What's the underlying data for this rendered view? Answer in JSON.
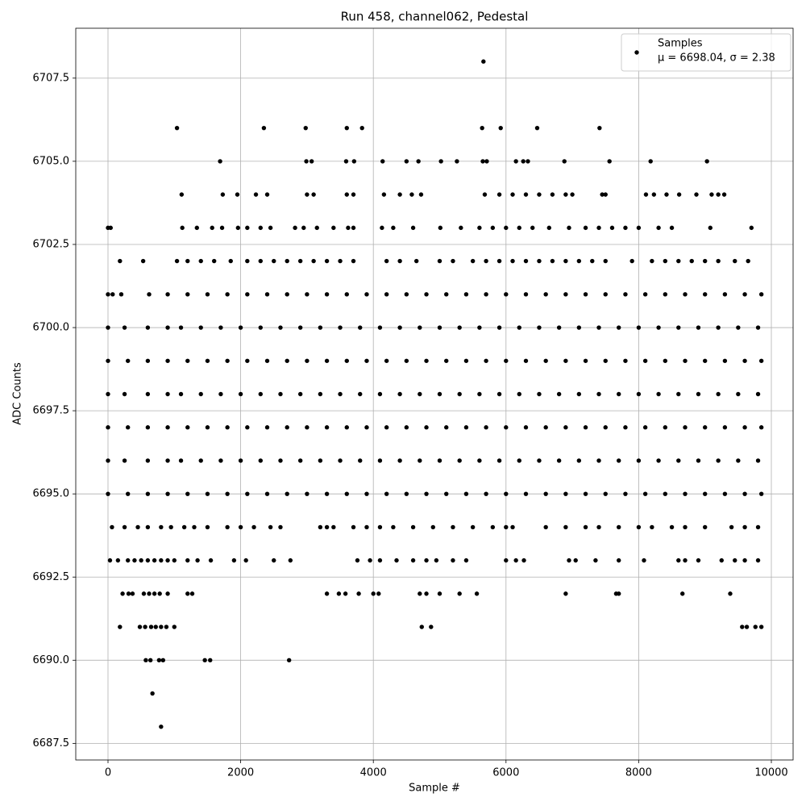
{
  "chart_data": {
    "type": "scatter",
    "title": "Run 458, channel062, Pedestal",
    "x_label": "Sample #",
    "y_label": "ADC Counts",
    "xlim": [
      -486,
      10328
    ],
    "ylim": [
      6687,
      6709
    ],
    "xticks": [
      0,
      2000,
      4000,
      6000,
      8000,
      10000
    ],
    "yticks": [
      6687.5,
      {
        "value": 6690,
        "label": "6690.0"
      },
      6692.5,
      {
        "value": 6695,
        "label": "6695.0"
      },
      6697.5,
      {
        "value": 6700,
        "label": "6700.0"
      },
      6702.5,
      {
        "value": 6705,
        "label": "6705.0"
      },
      6707.5
    ],
    "grid": true,
    "legend": "upper right",
    "series": [
      {
        "name": "Samples",
        "stats": "μ = 6698.04, σ = 2.38",
        "color": "#000000",
        "x": [
          5660,
          1040,
          2350,
          2980,
          3600,
          3830,
          5640,
          5920,
          6470,
          7410,
          1690,
          2990,
          3070,
          3590,
          3710,
          4140,
          4500,
          4680,
          5020,
          5260,
          5650,
          5710,
          6150,
          6260,
          6330,
          6880,
          7560,
          8180,
          9030,
          1110,
          1730,
          1950,
          2230,
          2400,
          3000,
          3100,
          3600,
          3700,
          4160,
          4400,
          4580,
          4720,
          5680,
          5900,
          6100,
          6300,
          6500,
          6700,
          6900,
          7000,
          7450,
          7500,
          8110,
          8230,
          8420,
          8610,
          8870,
          9100,
          9200,
          9290,
          0,
          40,
          1120,
          1340,
          1570,
          1720,
          1960,
          2100,
          2300,
          2450,
          2820,
          2950,
          3150,
          3400,
          3620,
          3700,
          4130,
          4300,
          4600,
          5010,
          5320,
          5600,
          5800,
          6000,
          6200,
          6400,
          6650,
          6950,
          7200,
          7400,
          7600,
          7800,
          8000,
          8300,
          8500,
          9080,
          9700,
          180,
          530,
          1040,
          1200,
          1400,
          1600,
          1850,
          2100,
          2300,
          2500,
          2700,
          2900,
          3100,
          3300,
          3500,
          3700,
          4200,
          4400,
          4650,
          5000,
          5200,
          5500,
          5700,
          5900,
          6100,
          6300,
          6500,
          6700,
          6900,
          7100,
          7300,
          7500,
          7900,
          8200,
          8400,
          8600,
          8800,
          9000,
          9200,
          9450,
          9650,
          0,
          70,
          200,
          620,
          900,
          1200,
          1500,
          1800,
          2100,
          2400,
          2700,
          3000,
          3300,
          3600,
          3900,
          4200,
          4500,
          4800,
          5100,
          5400,
          5700,
          6000,
          6300,
          6600,
          6900,
          7200,
          7500,
          7800,
          8100,
          8400,
          8700,
          9000,
          9300,
          9600,
          9850,
          0,
          250,
          600,
          900,
          1100,
          1400,
          1700,
          2000,
          2300,
          2600,
          2900,
          3200,
          3500,
          3800,
          4100,
          4400,
          4700,
          5000,
          5300,
          5600,
          5900,
          6200,
          6500,
          6800,
          7100,
          7400,
          7700,
          8000,
          8300,
          8600,
          8900,
          9200,
          9500,
          9800,
          0,
          300,
          600,
          900,
          1200,
          1500,
          1800,
          2100,
          2400,
          2700,
          3000,
          3300,
          3600,
          3900,
          4200,
          4500,
          4800,
          5100,
          5400,
          5700,
          6000,
          6300,
          6600,
          6900,
          7200,
          7500,
          7800,
          8100,
          8400,
          8700,
          9000,
          9300,
          9600,
          9850,
          0,
          250,
          600,
          900,
          1100,
          1400,
          1700,
          2000,
          2300,
          2600,
          2900,
          3200,
          3500,
          3800,
          4100,
          4400,
          4700,
          5000,
          5300,
          5600,
          5900,
          6200,
          6500,
          6800,
          7100,
          7400,
          7700,
          8000,
          8300,
          8600,
          8900,
          9200,
          9500,
          9800,
          0,
          300,
          600,
          900,
          1200,
          1500,
          1800,
          2100,
          2400,
          2700,
          3000,
          3300,
          3600,
          3900,
          4200,
          4500,
          4800,
          5100,
          5400,
          5700,
          6000,
          6300,
          6600,
          6900,
          7200,
          7500,
          7800,
          8100,
          8400,
          8700,
          9000,
          9300,
          9600,
          9850,
          0,
          250,
          600,
          900,
          1100,
          1400,
          1700,
          2000,
          2300,
          2600,
          2900,
          3200,
          3500,
          3800,
          4100,
          4400,
          4700,
          5000,
          5300,
          5600,
          5900,
          6200,
          6500,
          6800,
          7100,
          7400,
          7700,
          8000,
          8300,
          8600,
          8900,
          9200,
          9500,
          9800,
          0,
          300,
          600,
          900,
          1200,
          1500,
          1800,
          2100,
          2400,
          2700,
          3000,
          3300,
          3600,
          3900,
          4200,
          4500,
          4800,
          5100,
          5400,
          5700,
          6000,
          6300,
          6600,
          6900,
          7200,
          7500,
          7800,
          8100,
          8400,
          8700,
          9000,
          9300,
          9600,
          9850,
          60,
          250,
          450,
          600,
          800,
          950,
          1150,
          1300,
          1500,
          1800,
          2000,
          2200,
          2450,
          2600,
          3200,
          3300,
          3400,
          3700,
          3900,
          4100,
          4300,
          4600,
          4900,
          5200,
          5500,
          5800,
          6000,
          6100,
          6600,
          6900,
          7200,
          7400,
          7700,
          8000,
          8200,
          8500,
          8700,
          9000,
          9400,
          9600,
          9800,
          30,
          150,
          300,
          400,
          500,
          600,
          700,
          800,
          900,
          1000,
          1200,
          1350,
          1550,
          1900,
          2080,
          2500,
          2750,
          3760,
          3950,
          4100,
          4350,
          4600,
          4800,
          4950,
          5200,
          5400,
          6000,
          6150,
          6270,
          6950,
          7050,
          7350,
          7700,
          8080,
          8600,
          8700,
          8900,
          9250,
          9450,
          9600,
          9800,
          220,
          310,
          370,
          540,
          620,
          700,
          780,
          900,
          1200,
          1270,
          3300,
          3480,
          3580,
          3780,
          4000,
          4080,
          4700,
          4800,
          5000,
          5300,
          5560,
          6900,
          7660,
          7700,
          8660,
          9380,
          180,
          480,
          560,
          650,
          720,
          800,
          880,
          1000,
          4730,
          4870,
          9560,
          9630,
          9760,
          9850,
          570,
          640,
          770,
          830,
          1460,
          1540,
          2730,
          670,
          800
        ],
        "values": [
          6708,
          6706,
          6706,
          6706,
          6706,
          6706,
          6706,
          6706,
          6706,
          6706,
          6705,
          6705,
          6705,
          6705,
          6705,
          6705,
          6705,
          6705,
          6705,
          6705,
          6705,
          6705,
          6705,
          6705,
          6705,
          6705,
          6705,
          6705,
          6705,
          6704,
          6704,
          6704,
          6704,
          6704,
          6704,
          6704,
          6704,
          6704,
          6704,
          6704,
          6704,
          6704,
          6704,
          6704,
          6704,
          6704,
          6704,
          6704,
          6704,
          6704,
          6704,
          6704,
          6704,
          6704,
          6704,
          6704,
          6704,
          6704,
          6704,
          6704,
          6703,
          6703,
          6703,
          6703,
          6703,
          6703,
          6703,
          6703,
          6703,
          6703,
          6703,
          6703,
          6703,
          6703,
          6703,
          6703,
          6703,
          6703,
          6703,
          6703,
          6703,
          6703,
          6703,
          6703,
          6703,
          6703,
          6703,
          6703,
          6703,
          6703,
          6703,
          6703,
          6703,
          6703,
          6703,
          6703,
          6703,
          6702,
          6702,
          6702,
          6702,
          6702,
          6702,
          6702,
          6702,
          6702,
          6702,
          6702,
          6702,
          6702,
          6702,
          6702,
          6702,
          6702,
          6702,
          6702,
          6702,
          6702,
          6702,
          6702,
          6702,
          6702,
          6702,
          6702,
          6702,
          6702,
          6702,
          6702,
          6702,
          6702,
          6702,
          6702,
          6702,
          6702,
          6702,
          6702,
          6702,
          6702,
          6701,
          6701,
          6701,
          6701,
          6701,
          6701,
          6701,
          6701,
          6701,
          6701,
          6701,
          6701,
          6701,
          6701,
          6701,
          6701,
          6701,
          6701,
          6701,
          6701,
          6701,
          6701,
          6701,
          6701,
          6701,
          6701,
          6701,
          6701,
          6701,
          6701,
          6701,
          6701,
          6701,
          6701,
          6701,
          6700,
          6700,
          6700,
          6700,
          6700,
          6700,
          6700,
          6700,
          6700,
          6700,
          6700,
          6700,
          6700,
          6700,
          6700,
          6700,
          6700,
          6700,
          6700,
          6700,
          6700,
          6700,
          6700,
          6700,
          6700,
          6700,
          6700,
          6700,
          6700,
          6700,
          6700,
          6700,
          6700,
          6700,
          6699,
          6699,
          6699,
          6699,
          6699,
          6699,
          6699,
          6699,
          6699,
          6699,
          6699,
          6699,
          6699,
          6699,
          6699,
          6699,
          6699,
          6699,
          6699,
          6699,
          6699,
          6699,
          6699,
          6699,
          6699,
          6699,
          6699,
          6699,
          6699,
          6699,
          6699,
          6699,
          6699,
          6699,
          6698,
          6698,
          6698,
          6698,
          6698,
          6698,
          6698,
          6698,
          6698,
          6698,
          6698,
          6698,
          6698,
          6698,
          6698,
          6698,
          6698,
          6698,
          6698,
          6698,
          6698,
          6698,
          6698,
          6698,
          6698,
          6698,
          6698,
          6698,
          6698,
          6698,
          6698,
          6698,
          6698,
          6698,
          6697,
          6697,
          6697,
          6697,
          6697,
          6697,
          6697,
          6697,
          6697,
          6697,
          6697,
          6697,
          6697,
          6697,
          6697,
          6697,
          6697,
          6697,
          6697,
          6697,
          6697,
          6697,
          6697,
          6697,
          6697,
          6697,
          6697,
          6697,
          6697,
          6697,
          6697,
          6697,
          6697,
          6697,
          6696,
          6696,
          6696,
          6696,
          6696,
          6696,
          6696,
          6696,
          6696,
          6696,
          6696,
          6696,
          6696,
          6696,
          6696,
          6696,
          6696,
          6696,
          6696,
          6696,
          6696,
          6696,
          6696,
          6696,
          6696,
          6696,
          6696,
          6696,
          6696,
          6696,
          6696,
          6696,
          6696,
          6696,
          6695,
          6695,
          6695,
          6695,
          6695,
          6695,
          6695,
          6695,
          6695,
          6695,
          6695,
          6695,
          6695,
          6695,
          6695,
          6695,
          6695,
          6695,
          6695,
          6695,
          6695,
          6695,
          6695,
          6695,
          6695,
          6695,
          6695,
          6695,
          6695,
          6695,
          6695,
          6695,
          6695,
          6695,
          6694,
          6694,
          6694,
          6694,
          6694,
          6694,
          6694,
          6694,
          6694,
          6694,
          6694,
          6694,
          6694,
          6694,
          6694,
          6694,
          6694,
          6694,
          6694,
          6694,
          6694,
          6694,
          6694,
          6694,
          6694,
          6694,
          6694,
          6694,
          6694,
          6694,
          6694,
          6694,
          6694,
          6694,
          6694,
          6694,
          6694,
          6694,
          6694,
          6694,
          6694,
          6693,
          6693,
          6693,
          6693,
          6693,
          6693,
          6693,
          6693,
          6693,
          6693,
          6693,
          6693,
          6693,
          6693,
          6693,
          6693,
          6693,
          6693,
          6693,
          6693,
          6693,
          6693,
          6693,
          6693,
          6693,
          6693,
          6693,
          6693,
          6693,
          6693,
          6693,
          6693,
          6693,
          6693,
          6693,
          6693,
          6693,
          6693,
          6693,
          6693,
          6693,
          6692,
          6692,
          6692,
          6692,
          6692,
          6692,
          6692,
          6692,
          6692,
          6692,
          6692,
          6692,
          6692,
          6692,
          6692,
          6692,
          6692,
          6692,
          6692,
          6692,
          6692,
          6692,
          6692,
          6692,
          6692,
          6692,
          6691,
          6691,
          6691,
          6691,
          6691,
          6691,
          6691,
          6691,
          6691,
          6691,
          6691,
          6691,
          6691,
          6691,
          6690,
          6690,
          6690,
          6690,
          6690,
          6690,
          6690,
          6689,
          6688
        ]
      }
    ]
  }
}
